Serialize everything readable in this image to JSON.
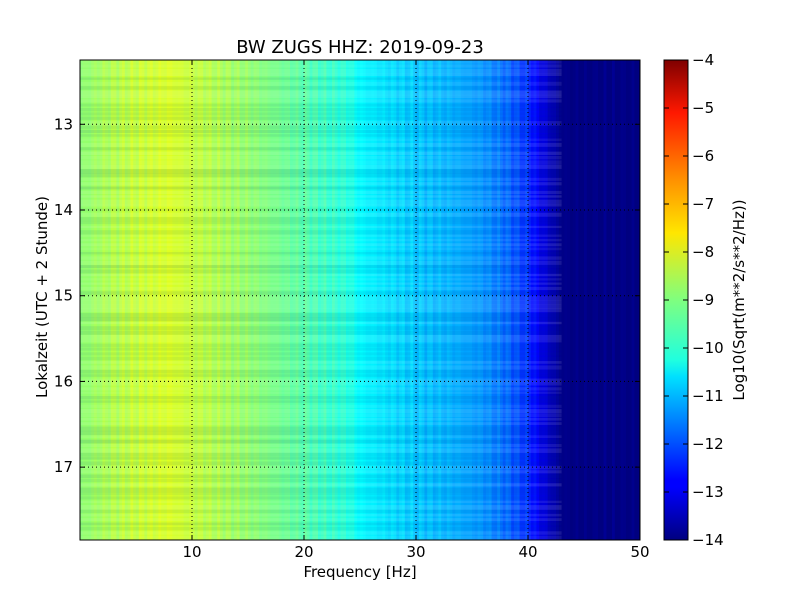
{
  "chart_data": {
    "type": "heatmap",
    "title": "BW ZUGS HHZ: 2019-09-23",
    "xlabel": "Frequency [Hz]",
    "ylabel": "Lokalzeit (UTC + 2 Stunde)",
    "xlim": [
      0,
      50
    ],
    "ylim": [
      12.25,
      17.85
    ],
    "y_inverted": true,
    "x_ticks": [
      10,
      20,
      30,
      40,
      50
    ],
    "x_tick_labels": [
      "10",
      "20",
      "30",
      "40",
      "50"
    ],
    "y_ticks": [
      13,
      14,
      15,
      16,
      17
    ],
    "y_tick_labels": [
      "13",
      "14",
      "15",
      "16",
      "17"
    ],
    "grid": true,
    "colormap": "jet",
    "colorbar": {
      "label": "Log10(Sqrt(m**2/s**2/Hz))",
      "range": [
        -14,
        -4
      ],
      "ticks": [
        -4,
        -5,
        -6,
        -7,
        -8,
        -9,
        -10,
        -11,
        -12,
        -13,
        -14
      ],
      "tick_labels": [
        "−4",
        "−5",
        "−6",
        "−7",
        "−8",
        "−9",
        "−10",
        "−11",
        "−12",
        "−13",
        "−14"
      ]
    },
    "spectrum_profile": {
      "frequency_hz": [
        0,
        2,
        5,
        8,
        10,
        15,
        20,
        22,
        24,
        25,
        28,
        30,
        33,
        36,
        38,
        40,
        41,
        42,
        43,
        45,
        50
      ],
      "log10_amplitude": [
        -8.9,
        -8.6,
        -8.3,
        -8.1,
        -8.3,
        -8.8,
        -9.4,
        -9.7,
        -9.9,
        -10.3,
        -10.6,
        -10.8,
        -11.0,
        -11.3,
        -11.7,
        -12.3,
        -12.9,
        -13.4,
        -13.9,
        -14.0,
        -14.0
      ]
    }
  }
}
